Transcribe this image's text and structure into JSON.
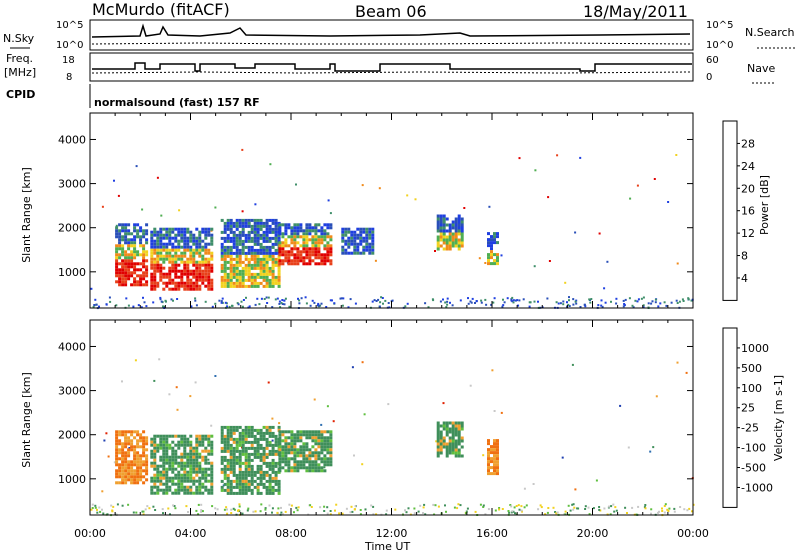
{
  "header": {
    "station": "McMurdo (fitACF)",
    "beam": "Beam 06",
    "date": "18/May/2011"
  },
  "strip_panels": {
    "noise": {
      "left_label": "N.Sky",
      "left_ticks": [
        "10^5",
        "10^0"
      ],
      "right_ticks": [
        "10^5",
        "10^0"
      ],
      "right_label": "N.Search"
    },
    "freq": {
      "left_label_line1": "Freq.",
      "left_label_line2": "[MHz]",
      "left_ticks": [
        "18",
        "8"
      ],
      "right_ticks": [
        "60",
        "0"
      ],
      "right_label": "Nave"
    },
    "cpid": {
      "label": "CPID",
      "program": "normalsound (fast) 157 RF"
    }
  },
  "colors": {
    "power_scale": [
      "#1f3fe0",
      "#2a4fb8",
      "#3f8f6a",
      "#4fae52",
      "#f2d21f",
      "#f08a1a",
      "#e8401a",
      "#e00000"
    ],
    "velocity_scale": [
      "#1f3fb0",
      "#2f6fb0",
      "#3f8f5a",
      "#5fbf3f",
      "#c8c8c8",
      "#f2d21f",
      "#f0a030",
      "#f07010",
      "#e02000"
    ]
  },
  "chart_data": [
    {
      "type": "heatmap",
      "title": "Power",
      "xlabel": "",
      "ylabel": "Slant Range [km]",
      "x_ticks": [
        "00:00",
        "04:00",
        "08:00",
        "12:00",
        "16:00",
        "20:00",
        "00:00"
      ],
      "xlim_hours": [
        0,
        24
      ],
      "y_ticks": [
        "1000",
        "2000",
        "3000",
        "4000"
      ],
      "ylim": [
        180,
        4600
      ],
      "colorbar": {
        "label": "Power [dB]",
        "ticks": [
          "28",
          "24",
          "20",
          "16",
          "12",
          "8",
          "4"
        ],
        "range": [
          0,
          32
        ]
      },
      "regions": [
        {
          "t_start": 1.0,
          "t_end": 2.2,
          "r_min": 700,
          "r_max": 2100,
          "level": "high"
        },
        {
          "t_start": 2.4,
          "t_end": 4.8,
          "r_min": 600,
          "r_max": 2000,
          "level": "high"
        },
        {
          "t_start": 5.2,
          "t_end": 7.5,
          "r_min": 700,
          "r_max": 2200,
          "level": "mid"
        },
        {
          "t_start": 7.5,
          "t_end": 9.6,
          "r_min": 1200,
          "r_max": 2100,
          "level": "high"
        },
        {
          "t_start": 10.0,
          "t_end": 11.3,
          "r_min": 1400,
          "r_max": 2000,
          "level": "low"
        },
        {
          "t_start": 13.8,
          "t_end": 14.8,
          "r_min": 1500,
          "r_max": 2300,
          "level": "mid"
        },
        {
          "t_start": 15.8,
          "t_end": 16.2,
          "r_min": 1200,
          "r_max": 1900,
          "level": "mid"
        }
      ]
    },
    {
      "type": "heatmap",
      "title": "Velocity",
      "xlabel": "Time UT",
      "ylabel": "Slant Range [km]",
      "x_ticks": [
        "00:00",
        "04:00",
        "08:00",
        "12:00",
        "16:00",
        "20:00",
        "00:00"
      ],
      "xlim_hours": [
        0,
        24
      ],
      "y_ticks": [
        "1000",
        "2000",
        "3000",
        "4000"
      ],
      "ylim": [
        180,
        4600
      ],
      "colorbar": {
        "label": "Velocity [m s-1]",
        "ticks": [
          "1000",
          "500",
          "100",
          "25",
          "-25",
          "-100",
          "-500",
          "-1000"
        ],
        "range": [
          -1000,
          1000
        ]
      },
      "regions": [
        {
          "t_start": 1.0,
          "t_end": 2.2,
          "r_min": 900,
          "r_max": 2100,
          "level": "neg"
        },
        {
          "t_start": 2.4,
          "t_end": 4.8,
          "r_min": 700,
          "r_max": 2000,
          "level": "pos"
        },
        {
          "t_start": 5.2,
          "t_end": 7.5,
          "r_min": 700,
          "r_max": 2200,
          "level": "pos"
        },
        {
          "t_start": 7.5,
          "t_end": 9.6,
          "r_min": 1200,
          "r_max": 2100,
          "level": "pos"
        },
        {
          "t_start": 13.8,
          "t_end": 14.8,
          "r_min": 1500,
          "r_max": 2300,
          "level": "pos"
        },
        {
          "t_start": 15.8,
          "t_end": 16.2,
          "r_min": 1100,
          "r_max": 1900,
          "level": "neg"
        }
      ]
    }
  ]
}
